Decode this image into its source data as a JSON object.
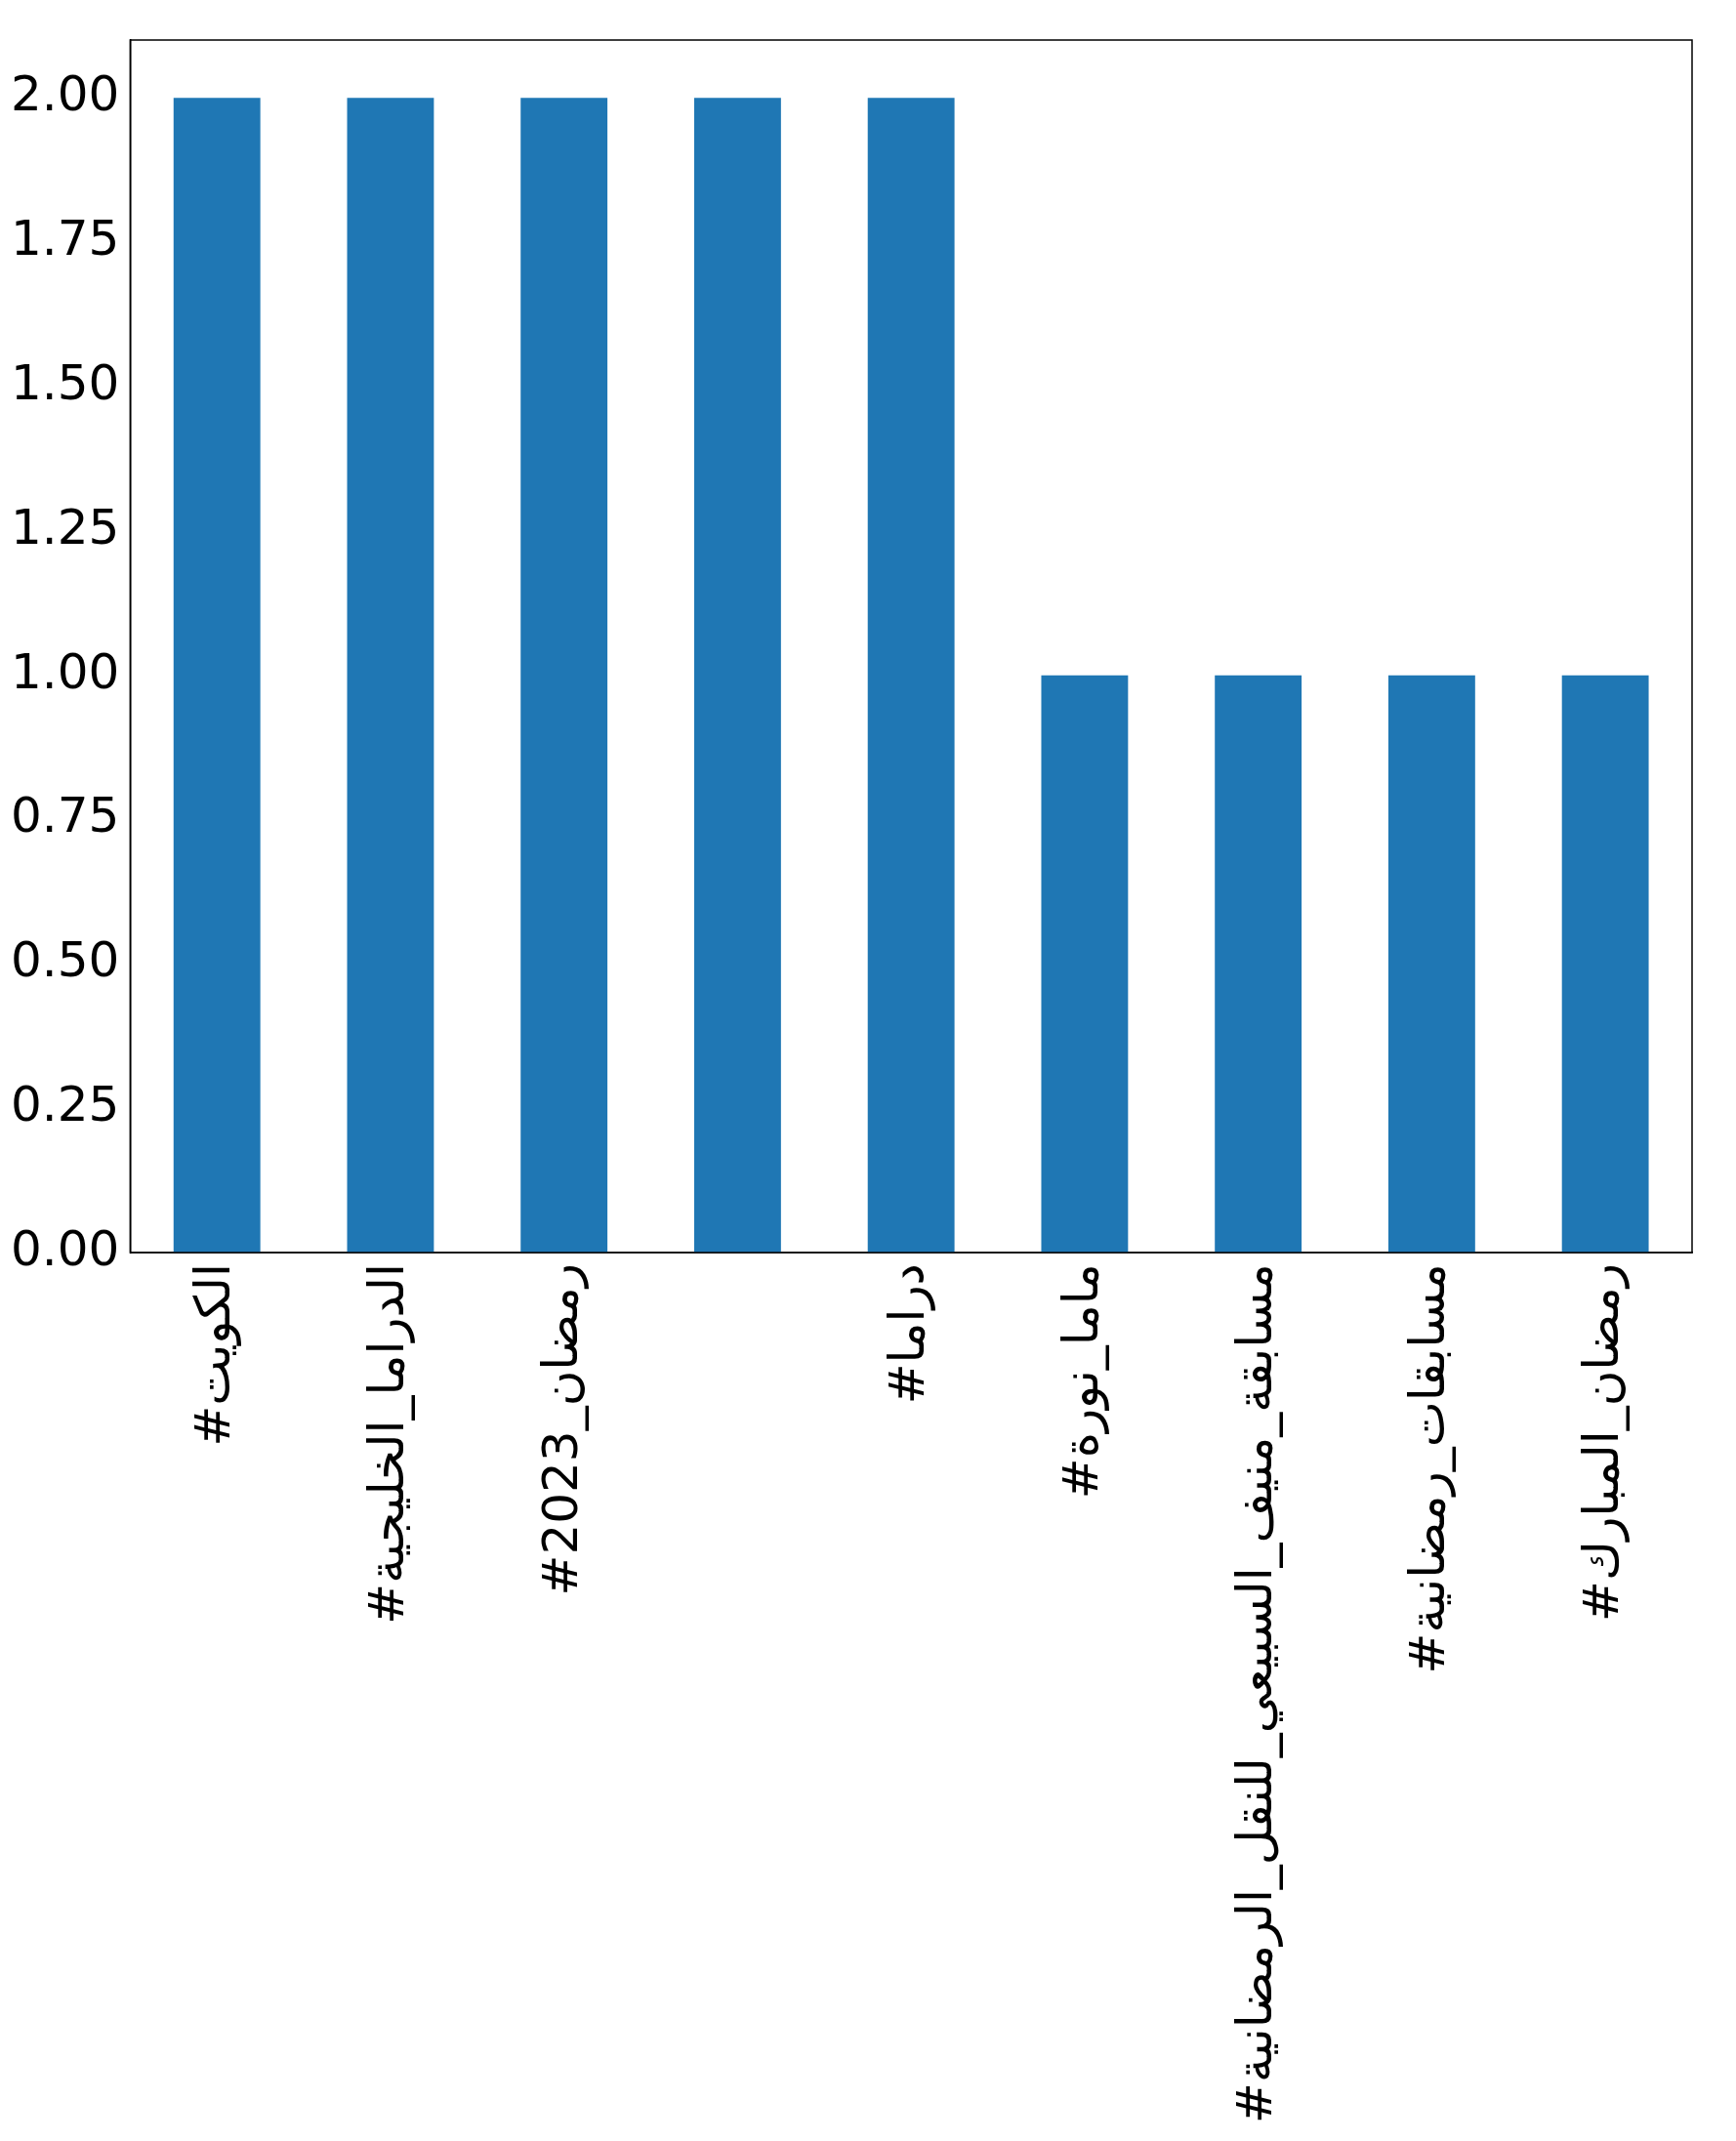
{
  "chart_data": {
    "type": "bar",
    "categories": [
      "#الكويت",
      "#الدراما_الخليجية",
      "#رمضان_2023",
      null,
      "#دراما",
      "#ماما_نورة",
      "#مسابقة_منيف_السبيعي_للنقل_الرمضانية",
      "#مسابقات_رمضانية",
      "#رمضان_المبارك"
    ],
    "values": [
      2,
      2,
      2,
      2,
      2,
      1,
      1,
      1,
      1
    ],
    "color": "#1f77b4",
    "ylim": [
      0,
      2.1
    ],
    "yticks": [
      {
        "value": 0,
        "label": "0.00"
      },
      {
        "value": 0.25,
        "label": "0.25"
      },
      {
        "value": 0.5,
        "label": "0.50"
      },
      {
        "value": 0.75,
        "label": "0.75"
      },
      {
        "value": 1,
        "label": "1.00"
      },
      {
        "value": 1.25,
        "label": "1.25"
      },
      {
        "value": 1.5,
        "label": "1.50"
      },
      {
        "value": 1.75,
        "label": "1.75"
      },
      {
        "value": 2,
        "label": "2.00"
      }
    ],
    "grid": false,
    "legend": false
  }
}
